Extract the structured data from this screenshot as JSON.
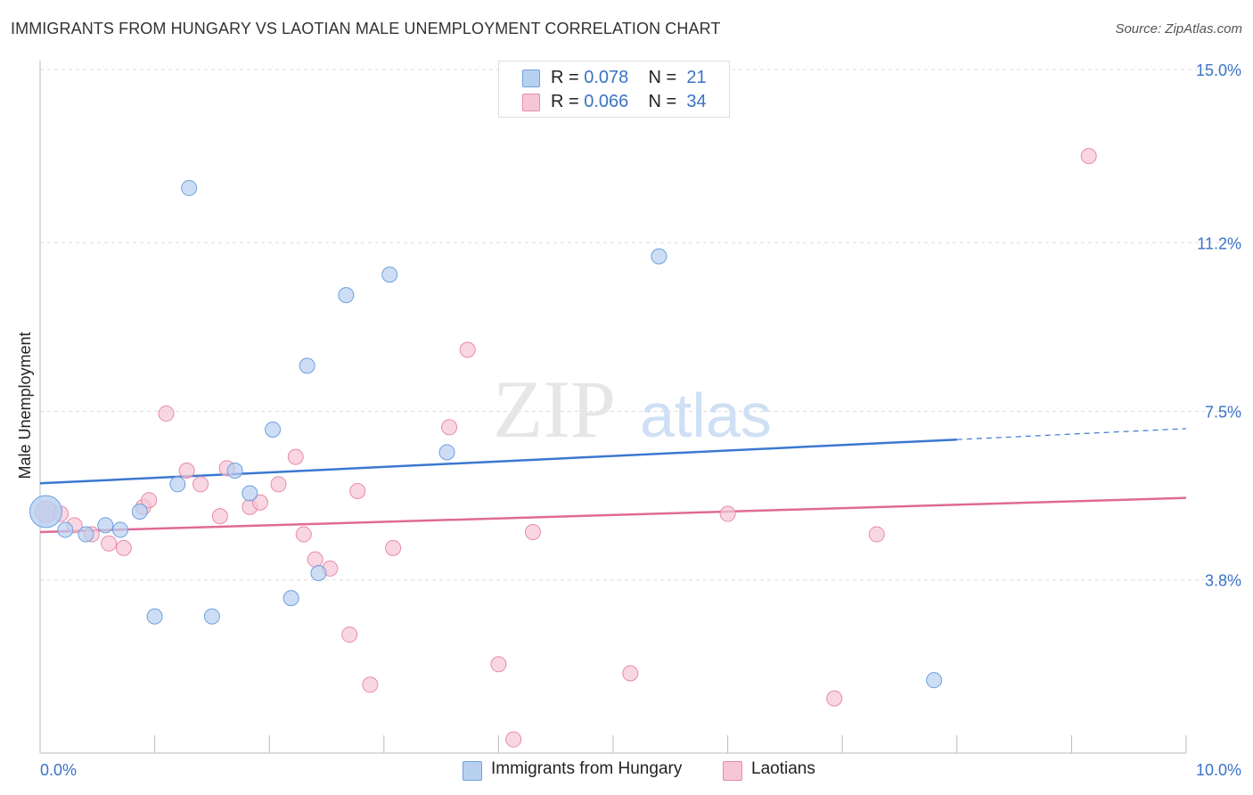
{
  "title": "IMMIGRANTS FROM HUNGARY VS LAOTIAN MALE UNEMPLOYMENT CORRELATION CHART",
  "source": "Source: ZipAtlas.com",
  "watermark": {
    "zip": "ZIP",
    "atlas": "atlas"
  },
  "legend_top": [
    {
      "r_label": "R =",
      "r_value": "0.078",
      "n_label": "N =",
      "n_value": "21"
    },
    {
      "r_label": "R =",
      "r_value": "0.066",
      "n_label": "N =",
      "n_value": "34"
    }
  ],
  "colors": {
    "blue_fill": "#b8d0f0",
    "blue_stroke": "#6f9fe0",
    "blue_line": "#3b78d0",
    "pink_fill": "#f7c6d6",
    "pink_stroke": "#e88aaa",
    "pink_line": "#e06a96",
    "tick_text": "#3b73c4",
    "grid": "#dddddd"
  },
  "chart_data": {
    "type": "scatter",
    "title": "IMMIGRANTS FROM HUNGARY VS LAOTIAN MALE UNEMPLOYMENT CORRELATION CHART",
    "xlabel": "",
    "ylabel": "Male Unemployment",
    "xlim": [
      0,
      10
    ],
    "ylim": [
      0,
      15
    ],
    "x_tick_labels": [
      "0.0%",
      "10.0%"
    ],
    "y_ticks": [
      3.8,
      7.5,
      11.2,
      15.0
    ],
    "y_tick_labels": [
      "3.8%",
      "7.5%",
      "11.2%",
      "15.0%"
    ],
    "grid": true,
    "legend_position": "bottom",
    "series": [
      {
        "name": "Immigrants from Hungary",
        "color": "#6f9fe0",
        "points": [
          [
            0.05,
            5.3
          ],
          [
            0.22,
            4.9
          ],
          [
            0.4,
            4.8
          ],
          [
            0.57,
            5.0
          ],
          [
            0.7,
            4.9
          ],
          [
            0.87,
            5.3
          ],
          [
            1.0,
            3.0
          ],
          [
            1.2,
            5.9
          ],
          [
            1.3,
            12.4
          ],
          [
            1.5,
            3.0
          ],
          [
            1.7,
            6.2
          ],
          [
            1.83,
            5.7
          ],
          [
            2.03,
            7.1
          ],
          [
            2.19,
            3.4
          ],
          [
            2.33,
            8.5
          ],
          [
            2.43,
            3.95
          ],
          [
            2.67,
            10.05
          ],
          [
            3.05,
            10.5
          ],
          [
            3.55,
            6.6
          ],
          [
            5.4,
            10.9
          ],
          [
            7.8,
            1.6
          ]
        ],
        "trend": {
          "x": [
            0,
            8.0
          ],
          "y": [
            5.92,
            6.88
          ],
          "dashed_extension": {
            "x": [
              8.0,
              10.0
            ],
            "y": [
              6.88,
              7.12
            ]
          }
        }
      },
      {
        "name": "Laotians",
        "color": "#e88aaa",
        "points": [
          [
            0.05,
            5.3
          ],
          [
            0.18,
            5.25
          ],
          [
            0.3,
            5.0
          ],
          [
            0.45,
            4.8
          ],
          [
            0.6,
            4.6
          ],
          [
            0.73,
            4.5
          ],
          [
            0.9,
            5.4
          ],
          [
            0.95,
            5.55
          ],
          [
            1.1,
            7.45
          ],
          [
            1.28,
            6.2
          ],
          [
            1.4,
            5.9
          ],
          [
            1.57,
            5.2
          ],
          [
            1.63,
            6.25
          ],
          [
            1.83,
            5.4
          ],
          [
            1.92,
            5.5
          ],
          [
            2.08,
            5.9
          ],
          [
            2.23,
            6.5
          ],
          [
            2.3,
            4.8
          ],
          [
            2.4,
            4.25
          ],
          [
            2.53,
            4.05
          ],
          [
            2.7,
            2.6
          ],
          [
            2.77,
            5.75
          ],
          [
            2.88,
            1.5
          ],
          [
            3.08,
            4.5
          ],
          [
            3.57,
            7.15
          ],
          [
            3.73,
            8.85
          ],
          [
            4.0,
            1.95
          ],
          [
            4.13,
            0.3
          ],
          [
            4.3,
            4.85
          ],
          [
            5.15,
            1.75
          ],
          [
            6.0,
            5.25
          ],
          [
            6.93,
            1.2
          ],
          [
            7.3,
            4.8
          ],
          [
            9.15,
            13.1
          ]
        ],
        "trend": {
          "x": [
            0,
            10.0
          ],
          "y": [
            4.85,
            5.6
          ]
        }
      }
    ]
  },
  "legend_bottom": [
    {
      "label": "Immigrants from Hungary"
    },
    {
      "label": "Laotians"
    }
  ]
}
